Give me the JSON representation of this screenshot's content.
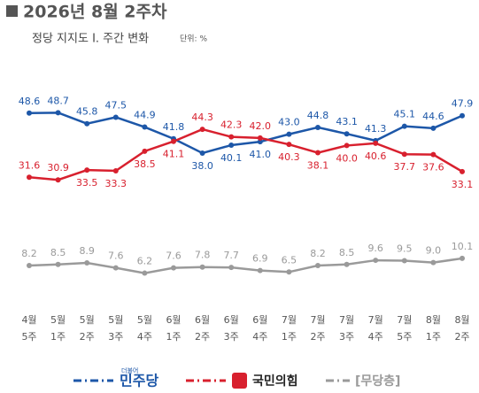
{
  "chart_data": {
    "type": "line",
    "title": "2026년 8월 2주차",
    "subtitle": "정당 지지도 Ⅰ. 주간 변화",
    "unit_label": "단위: %",
    "categories": [
      [
        "4월",
        "5주"
      ],
      [
        "5월",
        "1주"
      ],
      [
        "5월",
        "2주"
      ],
      [
        "5월",
        "3주"
      ],
      [
        "5월",
        "4주"
      ],
      [
        "6월",
        "1주"
      ],
      [
        "6월",
        "2주"
      ],
      [
        "6월",
        "3주"
      ],
      [
        "6월",
        "4주"
      ],
      [
        "7월",
        "1주"
      ],
      [
        "7월",
        "2주"
      ],
      [
        "7월",
        "3주"
      ],
      [
        "7월",
        "4주"
      ],
      [
        "7월",
        "5주"
      ],
      [
        "8월",
        "1주"
      ],
      [
        "8월",
        "2주"
      ]
    ],
    "series": [
      {
        "name": "민주당",
        "logo": "더불어",
        "color": "#1d57a8",
        "values": [
          48.6,
          48.7,
          45.8,
          47.5,
          44.9,
          41.8,
          38.0,
          40.1,
          41.0,
          43.0,
          44.8,
          43.1,
          41.3,
          45.1,
          44.6,
          47.9
        ],
        "value_labels": [
          "48.6",
          "48.7",
          "45.8",
          "47.5",
          "44.9",
          "41.8",
          "38.0",
          "40.1",
          "41.0",
          "43.0",
          "44.8",
          "43.1",
          "41.3",
          "45.1",
          "44.6",
          "47.9"
        ]
      },
      {
        "name": "국민의힘",
        "color": "#d8202e",
        "values": [
          31.6,
          30.9,
          33.5,
          33.3,
          38.5,
          41.1,
          44.3,
          42.3,
          42.0,
          40.3,
          38.1,
          40.0,
          40.6,
          37.7,
          37.6,
          33.1
        ],
        "value_labels": [
          "31.6",
          "30.9",
          "33.5",
          "33.3",
          "38.5",
          "41.1",
          "44.3",
          "42.3",
          "42.0",
          "40.3",
          "38.1",
          "40.0",
          "40.6",
          "37.7",
          "37.6",
          "33.1"
        ]
      },
      {
        "name": "[무당층]",
        "color": "#9a9a9a",
        "values": [
          8.2,
          8.5,
          8.9,
          7.6,
          6.2,
          7.6,
          7.8,
          7.7,
          6.9,
          6.5,
          8.2,
          8.5,
          9.6,
          9.5,
          9.0,
          10.1
        ],
        "value_labels": [
          "8.2",
          "8.5",
          "8.9",
          "7.6",
          "6.2",
          "7.6",
          "7.8",
          "7.7",
          "6.9",
          "6.5",
          "8.2",
          "8.5",
          "9.6",
          "9.5",
          "9.0",
          "10.1"
        ]
      }
    ],
    "ylim": [
      0,
      53
    ]
  }
}
